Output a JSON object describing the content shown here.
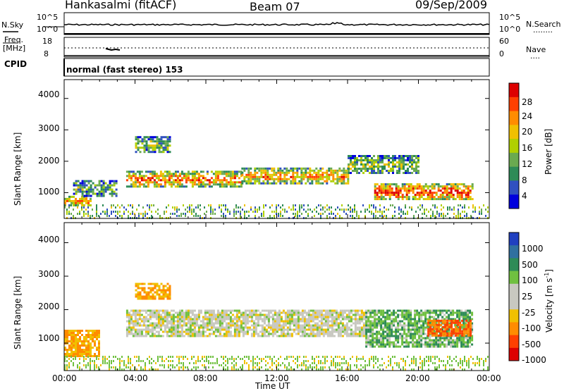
{
  "header": {
    "title": "Hankasalmi (fitACF)",
    "beam": "Beam 07",
    "date": "09/Sep/2009"
  },
  "noise_panel": {
    "left_label": "N.Sky",
    "left_ticks": [
      "10^5",
      "10^0"
    ],
    "right_ticks": [
      "10^5",
      "10^0"
    ],
    "right_label": "N.Search",
    "right_symbol": "........"
  },
  "freq_panel": {
    "left_label_1": "Freq.",
    "left_label_2": "[MHz]",
    "left_ticks": [
      "18",
      "8"
    ],
    "right_ticks": [
      "60",
      "0"
    ],
    "right_label": "Nave",
    "right_symbol": "...."
  },
  "cpid": {
    "label": "CPID",
    "value": "normal (fast stereo) 153"
  },
  "power_panel": {
    "ylabel": "Slant Range [km]",
    "yticks": [
      "4000",
      "3000",
      "2000",
      "1000"
    ],
    "colorbar_label": "Power [dB]",
    "colorbar_ticks": [
      "28",
      "24",
      "20",
      "16",
      "12",
      "8",
      "4"
    ],
    "colorbar_colors": [
      "#0000dd",
      "#3050c0",
      "#2e8b57",
      "#6aaa50",
      "#b0d000",
      "#f0c000",
      "#ff8c00",
      "#ff4000",
      "#dd0000"
    ]
  },
  "velocity_panel": {
    "ylabel": "Slant Range [km]",
    "yticks": [
      "4000",
      "3000",
      "2000",
      "1000"
    ],
    "colorbar_label": "Velocity [m s",
    "colorbar_sup": "-1",
    "colorbar_label_end": "]",
    "colorbar_ticks": [
      "1000",
      "500",
      "100",
      "25",
      "-25",
      "-100",
      "-500",
      "-1000"
    ],
    "colorbar_colors": [
      "#2040c0",
      "#3070a0",
      "#2e8b57",
      "#70c040",
      "#c8c8c0",
      "#c8c8c0",
      "#f0c000",
      "#ff8c00",
      "#ff4000",
      "#dd0000"
    ]
  },
  "xaxis": {
    "label": "Time UT",
    "ticks": [
      "00:00",
      "04:00",
      "08:00",
      "12:00",
      "16:00",
      "20:00",
      "00:00"
    ]
  },
  "chart_data": [
    {
      "type": "heatmap",
      "title": "Power",
      "xlabel": "Time UT",
      "ylabel": "Slant Range [km]",
      "xlim": [
        "00:00",
        "24:00"
      ],
      "ylim": [
        180,
        4600
      ],
      "z_range_dB": [
        0,
        30
      ],
      "regions": [
        {
          "t_start": 0.0,
          "t_end": 1.5,
          "range_start": 600,
          "range_end": 900,
          "power_dB": 24
        },
        {
          "t_start": 0.5,
          "t_end": 3.0,
          "range_start": 900,
          "range_end": 1400,
          "power_dB": 12
        },
        {
          "t_start": 3.5,
          "t_end": 10.0,
          "range_start": 1200,
          "range_end": 1700,
          "power_dB": 24
        },
        {
          "t_start": 10.0,
          "t_end": 16.0,
          "range_start": 1300,
          "range_end": 1800,
          "power_dB": 22
        },
        {
          "t_start": 16.0,
          "t_end": 20.0,
          "range_start": 1600,
          "range_end": 2200,
          "power_dB": 14
        },
        {
          "t_start": 17.5,
          "t_end": 23.0,
          "range_start": 800,
          "range_end": 1300,
          "power_dB": 28
        },
        {
          "t_start": 4.0,
          "t_end": 6.0,
          "range_start": 2300,
          "range_end": 2800,
          "power_dB": 14
        }
      ]
    },
    {
      "type": "heatmap",
      "title": "Velocity",
      "xlabel": "Time UT",
      "ylabel": "Slant Range [km]",
      "xlim": [
        "00:00",
        "24:00"
      ],
      "ylim": [
        180,
        4600
      ],
      "z_range_m_s": [
        -1000,
        1000
      ],
      "regions": [
        {
          "t_start": 0.0,
          "t_end": 2.0,
          "range_start": 600,
          "range_end": 1400,
          "velocity_m_s": -100
        },
        {
          "t_start": 3.5,
          "t_end": 17.0,
          "range_start": 1200,
          "range_end": 2000,
          "velocity_m_s": 0
        },
        {
          "t_start": 4.0,
          "t_end": 6.0,
          "range_start": 2300,
          "range_end": 2800,
          "velocity_m_s": -100
        },
        {
          "t_start": 17.0,
          "t_end": 23.0,
          "range_start": 900,
          "range_end": 2000,
          "velocity_m_s": 50
        },
        {
          "t_start": 20.5,
          "t_end": 23.0,
          "range_start": 1200,
          "range_end": 1700,
          "velocity_m_s": -300
        }
      ]
    }
  ]
}
